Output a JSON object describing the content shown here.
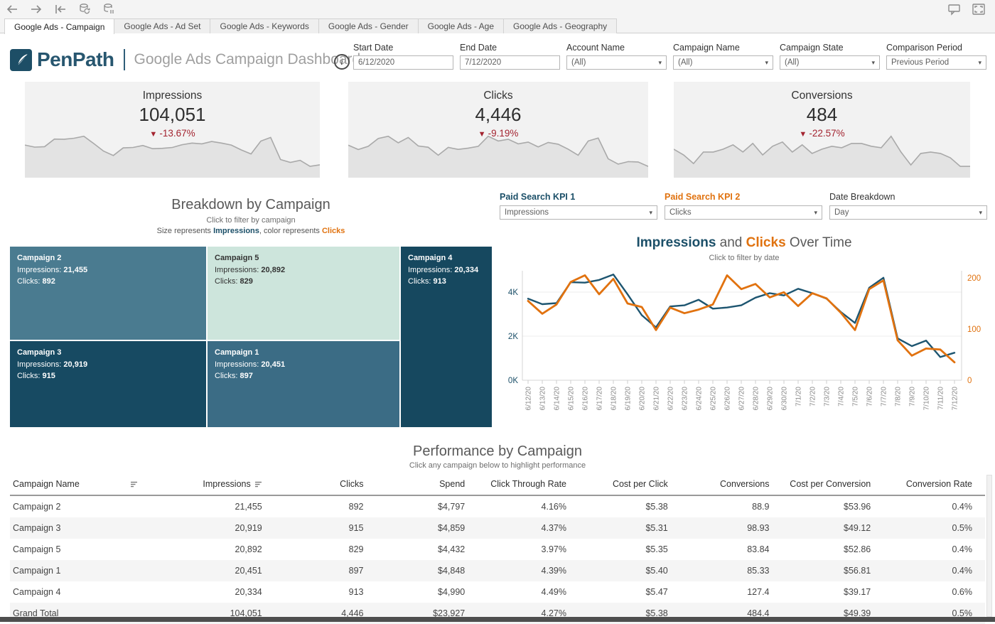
{
  "tabs": [
    {
      "label": "Google Ads - Campaign",
      "active": true
    },
    {
      "label": "Google Ads - Ad Set",
      "active": false
    },
    {
      "label": "Google Ads - Keywords",
      "active": false
    },
    {
      "label": "Google Ads - Gender",
      "active": false
    },
    {
      "label": "Google Ads - Age",
      "active": false
    },
    {
      "label": "Google Ads - Geography",
      "active": false
    }
  ],
  "header": {
    "logo_text": "PenPath",
    "dashboard_title": "Google Ads Campaign Dashboard"
  },
  "filters": [
    {
      "label": "Start Date",
      "value": "6/12/2020",
      "type": "input"
    },
    {
      "label": "End Date",
      "value": "7/12/2020",
      "type": "input"
    },
    {
      "label": "Account Name",
      "value": "(All)",
      "type": "dropdown"
    },
    {
      "label": "Campaign Name",
      "value": "(All)",
      "type": "dropdown"
    },
    {
      "label": "Campaign State",
      "value": "(All)",
      "type": "dropdown"
    },
    {
      "label": "Comparison Period",
      "value": "Previous Period",
      "type": "dropdown"
    }
  ],
  "kpis": [
    {
      "title": "Impressions",
      "value": "104,051",
      "delta": "-13.67%",
      "direction": "down",
      "spark": [
        3700,
        3450,
        3500,
        4450,
        4430,
        4550,
        4800,
        3900,
        2950,
        2400,
        3350,
        3400,
        3650,
        3250,
        3300,
        3400,
        3750,
        3950,
        3850,
        4150,
        3950,
        3700,
        3100,
        2600,
        4200,
        4650,
        1900,
        1550,
        1800,
        1050,
        1250
      ]
    },
    {
      "title": "Clicks",
      "value": "4,446",
      "delta": "-9.19%",
      "direction": "down",
      "spark": [
        155,
        130,
        148,
        192,
        205,
        168,
        198,
        150,
        143,
        98,
        142,
        131,
        138,
        148,
        205,
        178,
        188,
        162,
        172,
        145,
        170,
        160,
        132,
        98,
        178,
        195,
        78,
        48,
        62,
        60,
        35
      ]
    },
    {
      "title": "Conversions",
      "value": "484",
      "delta": "-22.57%",
      "direction": "down",
      "spark": [
        14,
        12,
        9,
        13,
        13,
        14,
        15.5,
        13,
        16,
        12,
        15,
        16.5,
        13,
        15.5,
        12.5,
        14,
        15,
        14.5,
        16,
        16,
        15,
        14.5,
        18.5,
        13,
        8.5,
        12.5,
        13,
        12.5,
        11,
        8,
        8
      ]
    }
  ],
  "treemap_header": {
    "title": "Breakdown by Campaign",
    "subtitle": "Click to filter by campaign",
    "legend_p1": "Size represents ",
    "legend_p2": "Impressions",
    "legend_p3": ", color represents ",
    "legend_p4": "Clicks"
  },
  "selectors": [
    {
      "label": "Paid Search KPI 1",
      "value": "Impressions",
      "accent": "#1b4f68",
      "bold": true
    },
    {
      "label": "Paid Search KPI 2",
      "value": "Clicks",
      "accent": "#e0720f",
      "bold": true
    },
    {
      "label": "Date Breakdown",
      "value": "Day",
      "accent": "#333333",
      "bold": false
    }
  ],
  "timeseries_header": {
    "part1": "Impressions",
    "part2": " and ",
    "part3": "Clicks",
    "part4": " Over Time",
    "subtitle": "Click to filter by date"
  },
  "table_header": {
    "title": "Performance by Campaign",
    "subtitle": "Click any campaign below to highlight performance"
  },
  "colors": {
    "impressions_blue": "#1d5570",
    "clicks_orange": "#e1720f",
    "delta_red": "#a32430",
    "spark_fill": "#e3e3e3",
    "spark_stroke": "#a9a9a9"
  },
  "chart_data": [
    {
      "type": "line",
      "title": "Impressions and Clicks Over Time",
      "subtitle": "Click to filter by date",
      "x": [
        "6/12/20",
        "6/13/20",
        "6/14/20",
        "6/15/20",
        "6/16/20",
        "6/17/20",
        "6/18/20",
        "6/19/20",
        "6/20/20",
        "6/21/20",
        "6/22/20",
        "6/23/20",
        "6/24/20",
        "6/25/20",
        "6/26/20",
        "6/27/20",
        "6/28/20",
        "6/29/20",
        "6/30/20",
        "7/1/20",
        "7/2/20",
        "7/3/20",
        "7/4/20",
        "7/5/20",
        "7/6/20",
        "7/7/20",
        "7/8/20",
        "7/9/20",
        "7/10/20",
        "7/11/20",
        "7/12/20"
      ],
      "series": [
        {
          "name": "Impressions",
          "axis": "left",
          "color": "#1d5570",
          "values": [
            3700,
            3450,
            3500,
            4450,
            4430,
            4550,
            4800,
            3900,
            2950,
            2400,
            3350,
            3400,
            3650,
            3250,
            3300,
            3400,
            3750,
            3950,
            3850,
            4150,
            3950,
            3700,
            3100,
            2600,
            4200,
            4650,
            1900,
            1550,
            1800,
            1050,
            1250
          ]
        },
        {
          "name": "Clicks",
          "axis": "right",
          "color": "#e1720f",
          "values": [
            155,
            130,
            148,
            192,
            205,
            168,
            198,
            150,
            143,
            98,
            142,
            131,
            138,
            148,
            205,
            178,
            188,
            162,
            172,
            145,
            170,
            160,
            132,
            98,
            178,
            195,
            78,
            48,
            62,
            60,
            35
          ]
        }
      ],
      "y_left": {
        "ticks": [
          {
            "label": "0K",
            "value": 0
          },
          {
            "label": "2K",
            "value": 2000
          },
          {
            "label": "4K",
            "value": 4000
          }
        ],
        "max": 4800
      },
      "y_right": {
        "ticks": [
          {
            "label": "0",
            "value": 0
          },
          {
            "label": "100",
            "value": 100
          },
          {
            "label": "200",
            "value": 200
          }
        ],
        "max": 210
      },
      "grid": true,
      "legend_position": "none"
    },
    {
      "type": "treemap",
      "title": "Breakdown by Campaign",
      "size_metric": "Impressions",
      "color_metric": "Clicks",
      "impressions_label": "Impressions: ",
      "clicks_label": "Clicks: ",
      "cells": [
        {
          "name": "Campaign 2",
          "impressions": "21,455",
          "clicks": "892",
          "color": "#4a7b90",
          "text": "#ffffff"
        },
        {
          "name": "Campaign 5",
          "impressions": "20,892",
          "clicks": "829",
          "color": "#cde5dc",
          "text": "#333333"
        },
        {
          "name": "Campaign 4",
          "impressions": "20,334",
          "clicks": "913",
          "color": "#16485f",
          "text": "#ffffff"
        },
        {
          "name": "Campaign 3",
          "impressions": "20,919",
          "clicks": "915",
          "color": "#174a62",
          "text": "#ffffff"
        },
        {
          "name": "Campaign 1",
          "impressions": "20,451",
          "clicks": "897",
          "color": "#3b6c85",
          "text": "#ffffff"
        }
      ]
    },
    {
      "type": "table",
      "title": "Performance by Campaign",
      "columns": [
        "Campaign Name",
        "Impressions",
        "Clicks",
        "Spend",
        "Click Through Rate",
        "Cost per Click",
        "Conversions",
        "Cost per Conversion",
        "Conversion Rate"
      ],
      "rows": [
        [
          "Campaign 2",
          "21,455",
          "892",
          "$4,797",
          "4.16%",
          "$5.38",
          "88.9",
          "$53.96",
          "0.4%"
        ],
        [
          "Campaign 3",
          "20,919",
          "915",
          "$4,859",
          "4.37%",
          "$5.31",
          "98.93",
          "$49.12",
          "0.5%"
        ],
        [
          "Campaign 5",
          "20,892",
          "829",
          "$4,432",
          "3.97%",
          "$5.35",
          "83.84",
          "$52.86",
          "0.4%"
        ],
        [
          "Campaign 1",
          "20,451",
          "897",
          "$4,848",
          "4.39%",
          "$5.40",
          "85.33",
          "$56.81",
          "0.4%"
        ],
        [
          "Campaign 4",
          "20,334",
          "913",
          "$4,990",
          "4.49%",
          "$5.47",
          "127.4",
          "$39.17",
          "0.6%"
        ],
        [
          "Grand Total",
          "104,051",
          "4,446",
          "$23,927",
          "4.27%",
          "$5.38",
          "484.4",
          "$49.39",
          "0.5%"
        ]
      ]
    }
  ]
}
